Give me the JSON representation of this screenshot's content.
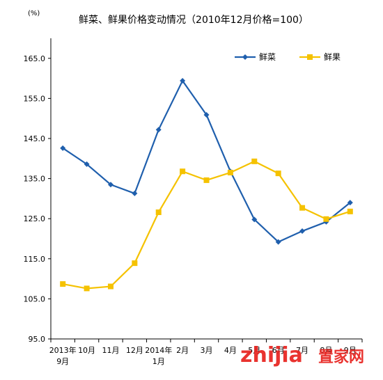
{
  "chart_data": {
    "type": "line",
    "title": "鲜菜、鲜果价格变动情况（2010年12月价格=100）",
    "unit_label": "(%)",
    "categories": [
      [
        "2013年",
        "9月"
      ],
      [
        "10月"
      ],
      [
        "11月"
      ],
      [
        "12月"
      ],
      [
        "2014年",
        "1月"
      ],
      [
        "2月"
      ],
      [
        "3月"
      ],
      [
        "4月"
      ],
      [
        "5月"
      ],
      [
        "6月"
      ],
      [
        "7月"
      ],
      [
        "8月"
      ],
      [
        "9月"
      ]
    ],
    "y_ticks": [
      "95.0",
      "105.0",
      "115.0",
      "125.0",
      "135.0",
      "145.0",
      "155.0",
      "165.0"
    ],
    "ylim": [
      95,
      170
    ],
    "grid": false,
    "legend_position": "top-right",
    "series": [
      {
        "name": "鲜菜",
        "color": "#1F5FAD",
        "marker": "diamond",
        "values": [
          142.6,
          138.6,
          133.5,
          131.3,
          147.2,
          159.4,
          150.9,
          136.8,
          124.8,
          119.2,
          121.9,
          124.2,
          129.0
        ]
      },
      {
        "name": "鲜果",
        "color": "#F5C200",
        "marker": "square",
        "values": [
          108.7,
          107.6,
          108.1,
          113.9,
          126.6,
          136.8,
          134.6,
          136.5,
          139.3,
          136.3,
          127.7,
          124.9,
          126.8
        ]
      }
    ]
  },
  "watermark": {
    "brand": "zhijia",
    "brand_suffix": "置家网"
  }
}
